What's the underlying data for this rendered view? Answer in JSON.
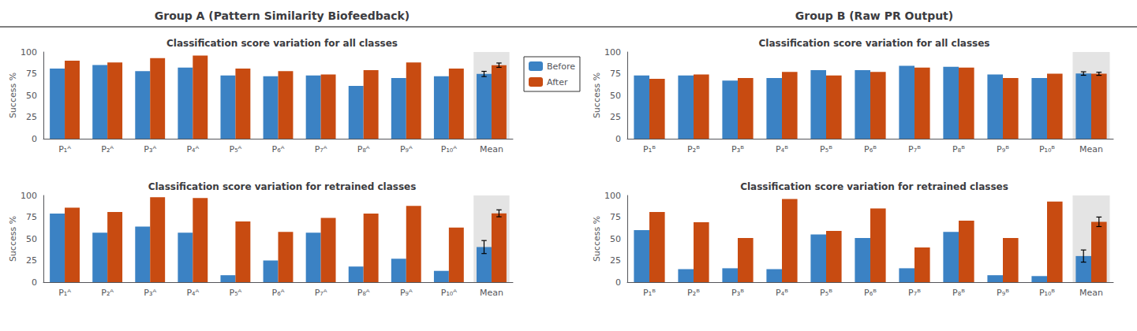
{
  "chart_data": [
    {
      "type": "bar",
      "title": "Classification score variation for all classes",
      "annotations": [
        "Group A (Pattern Similarity Biofeedback)"
      ],
      "ylabel": "Success %",
      "categories": [
        "P₁ᴬ",
        "P₂ᴬ",
        "P₃ᴬ",
        "P₄ᴬ",
        "P₅ᴬ",
        "P₆ᴬ",
        "P₇ᴬ",
        "P₈ᴬ",
        "P₉ᴬ",
        "P₁₀ᴬ",
        "Mean"
      ],
      "series": [
        {
          "name": "Before",
          "color": "#3B82C4",
          "values": [
            81,
            85,
            78,
            82,
            73,
            72,
            73,
            61,
            70,
            72,
            74.7
          ],
          "errors": [
            null,
            null,
            null,
            null,
            null,
            null,
            null,
            null,
            null,
            null,
            3.0
          ]
        },
        {
          "name": "After",
          "color": "#C84B11",
          "values": [
            90,
            88,
            93,
            96,
            81,
            78,
            74,
            79,
            88,
            81,
            84.8
          ],
          "errors": [
            null,
            null,
            null,
            null,
            null,
            null,
            null,
            null,
            null,
            null,
            2.5
          ]
        }
      ],
      "ylim": [
        0,
        100
      ],
      "yticks": [
        0,
        25,
        50,
        75,
        100
      ],
      "grid": false,
      "legend": "right"
    },
    {
      "type": "bar",
      "title": "Classification score variation for retrained classes",
      "ylabel": "Success %",
      "categories": [
        "P₁ᴬ",
        "P₂ᴬ",
        "P₃ᴬ",
        "P₄ᴬ",
        "P₅ᴬ",
        "P₆ᴬ",
        "P₇ᴬ",
        "P₈ᴬ",
        "P₉ᴬ",
        "P₁₀ᴬ",
        "Mean"
      ],
      "series": [
        {
          "name": "Before",
          "color": "#3B82C4",
          "values": [
            79,
            57,
            64,
            57,
            8,
            25,
            57,
            18,
            27,
            13,
            40.5
          ],
          "errors": [
            null,
            null,
            null,
            null,
            null,
            null,
            null,
            null,
            null,
            null,
            7.5
          ]
        },
        {
          "name": "After",
          "color": "#C84B11",
          "values": [
            86,
            81,
            98,
            97,
            70,
            58,
            74,
            79,
            88,
            63,
            79.4
          ],
          "errors": [
            null,
            null,
            null,
            null,
            null,
            null,
            null,
            null,
            null,
            null,
            4.0
          ]
        }
      ],
      "ylim": [
        0,
        100
      ],
      "yticks": [
        0,
        25,
        50,
        75,
        100
      ],
      "grid": false
    },
    {
      "type": "bar",
      "title": "Classification score variation for all classes",
      "annotations": [
        "Group B (Raw PR Output)"
      ],
      "ylabel": "Success %",
      "categories": [
        "P₁ᴮ",
        "P₂ᴮ",
        "P₃ᴮ",
        "P₄ᴮ",
        "P₅ᴮ",
        "P₆ᴮ",
        "P₇ᴮ",
        "P₈ᴮ",
        "P₉ᴮ",
        "P₁₀ᴮ",
        "Mean"
      ],
      "series": [
        {
          "name": "Before",
          "color": "#3B82C4",
          "values": [
            73,
            73,
            67,
            70,
            79,
            79,
            84,
            83,
            74,
            70,
            75.2
          ],
          "errors": [
            null,
            null,
            null,
            null,
            null,
            null,
            null,
            null,
            null,
            null,
            2.0
          ]
        },
        {
          "name": "After",
          "color": "#C84B11",
          "values": [
            69,
            74,
            70,
            77,
            73,
            77,
            82,
            82,
            70,
            75,
            74.9
          ],
          "errors": [
            null,
            null,
            null,
            null,
            null,
            null,
            null,
            null,
            null,
            null,
            1.8
          ]
        }
      ],
      "ylim": [
        0,
        100
      ],
      "yticks": [
        0,
        25,
        50,
        75,
        100
      ],
      "grid": false
    },
    {
      "type": "bar",
      "title": "Classification score variation for retrained classes",
      "ylabel": "Success %",
      "categories": [
        "P₁ᴮ",
        "P₂ᴮ",
        "P₃ᴮ",
        "P₄ᴮ",
        "P₅ᴮ",
        "P₆ᴮ",
        "P₇ᴮ",
        "P₈ᴮ",
        "P₉ᴮ",
        "P₁₀ᴮ",
        "Mean"
      ],
      "series": [
        {
          "name": "Before",
          "color": "#3B82C4",
          "values": [
            60,
            15,
            16,
            15,
            55,
            51,
            16,
            58,
            8,
            7,
            30.1
          ],
          "errors": [
            null,
            null,
            null,
            null,
            null,
            null,
            null,
            null,
            null,
            null,
            7.0
          ]
        },
        {
          "name": "After",
          "color": "#C84B11",
          "values": [
            81,
            69,
            51,
            96,
            59,
            85,
            40,
            71,
            51,
            93,
            69.6
          ],
          "errors": [
            null,
            null,
            null,
            null,
            null,
            null,
            null,
            null,
            null,
            null,
            5.5
          ]
        }
      ],
      "ylim": [
        0,
        100
      ],
      "yticks": [
        0,
        25,
        50,
        75,
        100
      ],
      "grid": false
    }
  ]
}
